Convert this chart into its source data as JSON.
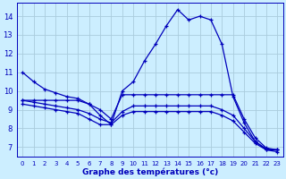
{
  "title": "Graphe des températures (°c)",
  "bg_color": "#cceeff",
  "line_color": "#0000bb",
  "grid_color": "#aaccdd",
  "xlim": [
    -0.5,
    23.5
  ],
  "ylim": [
    6.5,
    14.7
  ],
  "yticks": [
    7,
    8,
    9,
    10,
    11,
    12,
    13,
    14
  ],
  "xticks": [
    0,
    1,
    2,
    3,
    4,
    5,
    6,
    7,
    8,
    9,
    10,
    11,
    12,
    13,
    14,
    15,
    16,
    17,
    18,
    19,
    20,
    21,
    22,
    23
  ],
  "line1_x": [
    0,
    1,
    2,
    3,
    4,
    5,
    6,
    7,
    8,
    9,
    10,
    11,
    12,
    13,
    14,
    15,
    16,
    17,
    18,
    19,
    20,
    21,
    22,
    23
  ],
  "line1_y": [
    11.0,
    10.5,
    10.1,
    9.9,
    9.7,
    9.6,
    9.3,
    8.7,
    8.2,
    10.0,
    10.5,
    11.6,
    12.5,
    13.5,
    14.35,
    13.8,
    14.0,
    13.8,
    12.5,
    9.7,
    8.3,
    7.3,
    6.85,
    6.85
  ],
  "line2_x": [
    0,
    1,
    2,
    3,
    4,
    5,
    6,
    7,
    8,
    9,
    10,
    11,
    12,
    13,
    14,
    15,
    16,
    17,
    18,
    19,
    20,
    21,
    22,
    23
  ],
  "line2_y": [
    9.5,
    9.5,
    9.5,
    9.5,
    9.5,
    9.5,
    9.3,
    9.0,
    8.5,
    9.8,
    9.8,
    9.8,
    9.8,
    9.8,
    9.8,
    9.8,
    9.8,
    9.8,
    9.8,
    9.8,
    8.5,
    7.5,
    6.95,
    6.85
  ],
  "line3_x": [
    0,
    1,
    2,
    3,
    4,
    5,
    6,
    7,
    8,
    9,
    10,
    11,
    12,
    13,
    14,
    15,
    16,
    17,
    18,
    19,
    20,
    21,
    22,
    23
  ],
  "line3_y": [
    9.5,
    9.4,
    9.3,
    9.2,
    9.1,
    9.0,
    8.8,
    8.5,
    8.3,
    8.9,
    9.2,
    9.2,
    9.2,
    9.2,
    9.2,
    9.2,
    9.2,
    9.2,
    9.0,
    8.7,
    8.0,
    7.3,
    6.9,
    6.85
  ],
  "line4_x": [
    0,
    1,
    2,
    3,
    4,
    5,
    6,
    7,
    8,
    9,
    10,
    11,
    12,
    13,
    14,
    15,
    16,
    17,
    18,
    19,
    20,
    21,
    22,
    23
  ],
  "line4_y": [
    9.3,
    9.2,
    9.1,
    9.0,
    8.9,
    8.8,
    8.5,
    8.2,
    8.2,
    8.7,
    8.9,
    8.9,
    8.9,
    8.9,
    8.9,
    8.9,
    8.9,
    8.9,
    8.7,
    8.4,
    7.8,
    7.2,
    6.85,
    6.75
  ]
}
